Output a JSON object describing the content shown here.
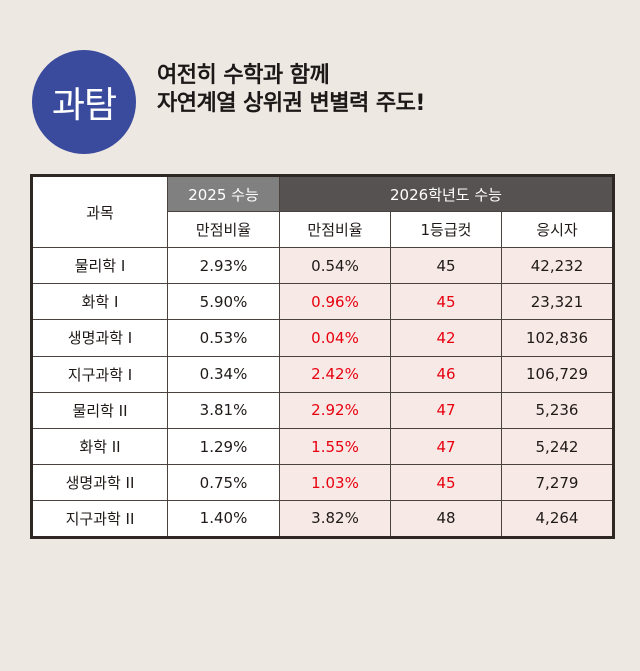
{
  "badge": {
    "label": "과탐",
    "color": "#3A4A9C"
  },
  "headline": {
    "line1": "여전히 수학과 함께",
    "line2": "자연계열 상위권 변별력 주도!"
  },
  "colors": {
    "background": "#EEE8E3",
    "header_2025": "#808080",
    "header_2026": "#575252",
    "highlight_cell": "#F7E9E6",
    "emphasis_text": "#E8000F",
    "border": "#2F2724"
  },
  "table": {
    "subject_header": "과목",
    "group_2025": "2025 수능",
    "group_2026": "2026학년도 수능",
    "columns": [
      "만점비율",
      "만점비율",
      "1등급컷",
      "응시자"
    ],
    "rows": [
      {
        "subject": "물리학 I",
        "perfect_2025": "2.93%",
        "perfect_2026": "0.54%",
        "cut_2026": "45",
        "takers_2026": "42,232",
        "emphasized": false
      },
      {
        "subject": "화학 I",
        "perfect_2025": "5.90%",
        "perfect_2026": "0.96%",
        "cut_2026": "45",
        "takers_2026": "23,321",
        "emphasized": true
      },
      {
        "subject": "생명과학 I",
        "perfect_2025": "0.53%",
        "perfect_2026": "0.04%",
        "cut_2026": "42",
        "takers_2026": "102,836",
        "emphasized": true
      },
      {
        "subject": "지구과학 I",
        "perfect_2025": "0.34%",
        "perfect_2026": "2.42%",
        "cut_2026": "46",
        "takers_2026": "106,729",
        "emphasized": true
      },
      {
        "subject": "물리학 II",
        "perfect_2025": "3.81%",
        "perfect_2026": "2.92%",
        "cut_2026": "47",
        "takers_2026": "5,236",
        "emphasized": true
      },
      {
        "subject": "화학 II",
        "perfect_2025": "1.29%",
        "perfect_2026": "1.55%",
        "cut_2026": "47",
        "takers_2026": "5,242",
        "emphasized": true
      },
      {
        "subject": "생명과학 II",
        "perfect_2025": "0.75%",
        "perfect_2026": "1.03%",
        "cut_2026": "45",
        "takers_2026": "7,279",
        "emphasized": true
      },
      {
        "subject": "지구과학 II",
        "perfect_2025": "1.40%",
        "perfect_2026": "3.82%",
        "cut_2026": "48",
        "takers_2026": "4,264",
        "emphasized": false
      }
    ]
  }
}
